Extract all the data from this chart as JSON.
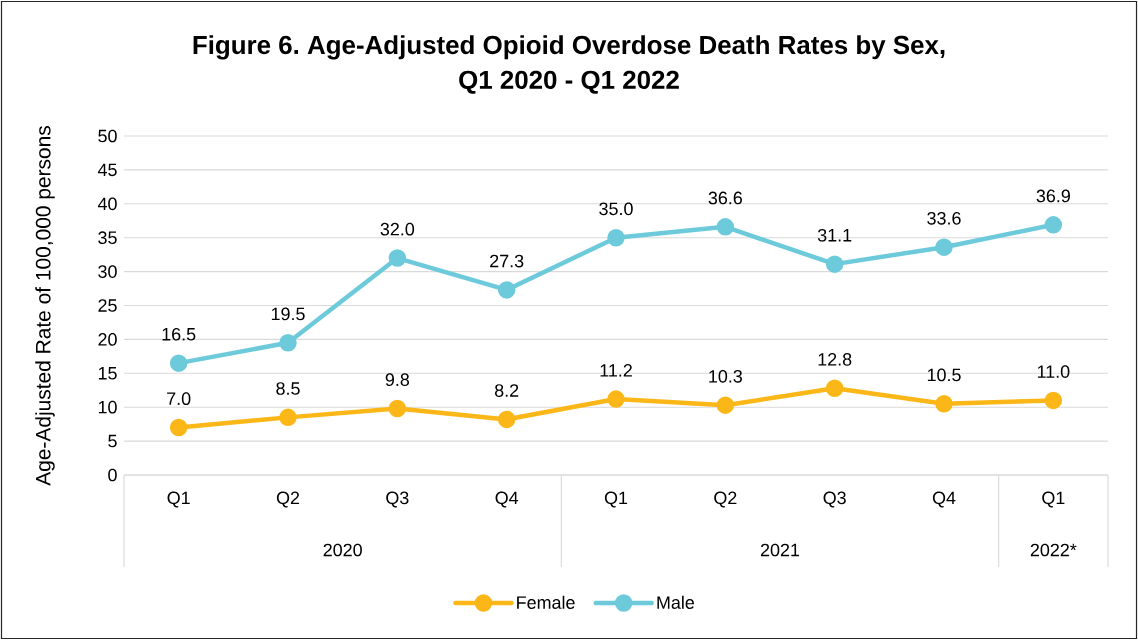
{
  "chart_data": {
    "type": "line",
    "title": "Figure 6. Age-Adjusted Opioid Overdose Death Rates by Sex, Q1 2020 - Q1 2022",
    "ylabel": "Age-Adjusted Rate of 100,000 persons",
    "categories": [
      "Q1",
      "Q2",
      "Q3",
      "Q4",
      "Q1",
      "Q2",
      "Q3",
      "Q4",
      "Q1"
    ],
    "annotations": [
      "2020",
      "2021",
      "2022*"
    ],
    "series": [
      {
        "name": "Female",
        "color": "#FBB718",
        "values": [
          7.0,
          8.5,
          9.8,
          8.2,
          11.2,
          10.3,
          12.8,
          10.5,
          11.0
        ],
        "value_labels": [
          "7.0",
          "8.5",
          "9.8",
          "8.2",
          "11.2",
          "10.3",
          "12.8",
          "10.5",
          "11.0"
        ]
      },
      {
        "name": "Male",
        "color": "#6DCADB",
        "values": [
          16.5,
          19.5,
          32.0,
          27.3,
          35.0,
          36.6,
          31.1,
          33.6,
          36.9
        ],
        "value_labels": [
          "16.5",
          "19.5",
          "32.0",
          "27.3",
          "35.0",
          "36.6",
          "31.1",
          "33.6",
          "36.9"
        ]
      }
    ],
    "ylim": [
      0,
      50
    ],
    "yticks": [
      0,
      5,
      10,
      15,
      20,
      25,
      30,
      35,
      40,
      45,
      50
    ],
    "grid": "y",
    "legend": "bottom",
    "marker": "circle"
  }
}
